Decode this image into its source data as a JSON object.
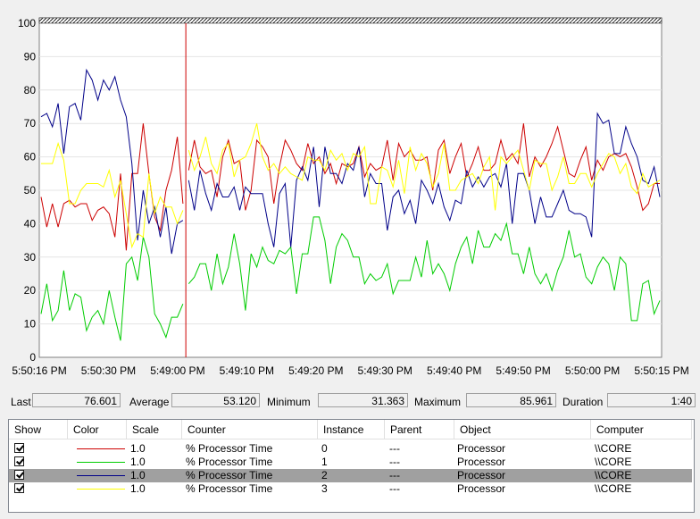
{
  "chart_data": {
    "type": "line",
    "y_ticks": [
      "0",
      "10",
      "20",
      "30",
      "40",
      "50",
      "60",
      "70",
      "80",
      "90",
      "100"
    ],
    "ylim": [
      0,
      100
    ],
    "x_ticks": [
      "5:50:16 PM",
      "5:50:30 PM",
      "5:49:00 PM",
      "5:49:10 PM",
      "5:49:20 PM",
      "5:49:30 PM",
      "5:49:40 PM",
      "5:49:50 PM",
      "5:50:00 PM",
      "5:50:15 PM"
    ],
    "current_sample_index": 26,
    "series": [
      {
        "color": "#cc0000",
        "values": [
          48,
          39,
          46,
          39,
          46,
          47,
          45,
          46,
          46,
          41,
          44,
          45,
          43,
          36,
          55,
          32,
          55,
          55,
          70,
          55,
          42,
          38,
          50,
          56,
          66,
          46,
          56,
          65,
          57,
          55,
          56,
          48,
          60,
          65,
          58,
          59,
          44,
          50,
          65,
          63,
          60,
          46,
          57,
          65,
          62,
          58,
          56,
          64,
          58,
          60,
          55,
          58,
          52,
          58,
          57,
          58,
          63,
          54,
          58,
          56,
          57,
          65,
          53,
          64,
          60,
          62,
          59,
          59,
          60,
          50,
          62,
          65,
          55,
          60,
          64,
          54,
          58,
          63,
          56,
          56,
          58,
          65,
          59,
          61,
          58,
          70,
          54,
          60,
          57,
          60,
          64,
          69,
          62,
          55,
          54,
          59,
          63,
          53,
          59,
          56,
          60,
          61,
          60,
          61,
          57,
          51,
          44,
          46,
          52,
          52
        ]
      },
      {
        "color": "#00cc00",
        "values": [
          13,
          22,
          11,
          14,
          26,
          14,
          19,
          18,
          8,
          12,
          14,
          10,
          20,
          12,
          5,
          28,
          30,
          23,
          36,
          30,
          13,
          10,
          6,
          12,
          12,
          16,
          22,
          24,
          28,
          28,
          20,
          31,
          22,
          27,
          37,
          28,
          14,
          31,
          27,
          33,
          29,
          28,
          32,
          31,
          33,
          19,
          31,
          31,
          42,
          42,
          35,
          22,
          33,
          37,
          35,
          30,
          30,
          22,
          25,
          23,
          24,
          28,
          19,
          23,
          23,
          23,
          30,
          24,
          35,
          25,
          28,
          25,
          20,
          28,
          33,
          36,
          28,
          38,
          33,
          33,
          37,
          35,
          40,
          31,
          31,
          25,
          33,
          25,
          22,
          25,
          20,
          26,
          30,
          38,
          30,
          31,
          24,
          22,
          27,
          30,
          28,
          20,
          30,
          28,
          11,
          11,
          22,
          23,
          13,
          17
        ]
      },
      {
        "color": "#000088",
        "values": [
          72,
          73,
          69,
          76,
          61,
          75,
          76,
          71,
          86,
          83,
          77,
          83,
          80,
          84,
          77,
          72,
          58,
          35,
          50,
          40,
          45,
          36,
          45,
          31,
          40,
          41,
          53,
          44,
          56,
          49,
          44,
          52,
          48,
          48,
          51,
          44,
          51,
          49,
          49,
          49,
          40,
          33,
          49,
          52,
          33,
          53,
          57,
          53,
          63,
          45,
          63,
          55,
          55,
          52,
          58,
          56,
          63,
          48,
          55,
          52,
          52,
          38,
          48,
          50,
          43,
          47,
          40,
          53,
          50,
          46,
          52,
          45,
          41,
          47,
          46,
          56,
          51,
          54,
          51,
          54,
          55,
          51,
          58,
          40,
          55,
          55,
          50,
          40,
          48,
          42,
          42,
          46,
          50,
          44,
          43,
          43,
          42,
          36,
          73,
          70,
          71,
          61,
          61,
          69,
          64,
          60,
          53,
          52,
          57,
          48
        ]
      },
      {
        "color": "#ffff00",
        "values": [
          58,
          58,
          58,
          64,
          59,
          46,
          46,
          50,
          52,
          52,
          52,
          51,
          56,
          48,
          53,
          43,
          33,
          37,
          36,
          55,
          43,
          48,
          45,
          45,
          40,
          44,
          62,
          56,
          60,
          66,
          58,
          55,
          62,
          64,
          54,
          59,
          60,
          64,
          70,
          60,
          56,
          58,
          55,
          57,
          55,
          54,
          53,
          60,
          59,
          59,
          56,
          62,
          59,
          61,
          56,
          61,
          60,
          63,
          46,
          46,
          57,
          56,
          51,
          59,
          49,
          63,
          56,
          61,
          58,
          51,
          55,
          64,
          50,
          50,
          53,
          54,
          55,
          52,
          57,
          60,
          44,
          60,
          58,
          60,
          62,
          56,
          50,
          59,
          58,
          58,
          50,
          54,
          60,
          52,
          52,
          55,
          55,
          51,
          55,
          58,
          61,
          60,
          55,
          58,
          51,
          49,
          55,
          51,
          52,
          53
        ]
      }
    ]
  },
  "stats": {
    "last_label": "Last",
    "last_value": "76.601",
    "average_label": "Average",
    "average_value": "53.120",
    "minimum_label": "Minimum",
    "minimum_value": "31.363",
    "maximum_label": "Maximum",
    "maximum_value": "85.961",
    "duration_label": "Duration",
    "duration_value": "1:40"
  },
  "legend": {
    "columns": [
      "Show",
      "Color",
      "Scale",
      "Counter",
      "Instance",
      "Parent",
      "Object",
      "Computer"
    ],
    "rows": [
      {
        "show": true,
        "color": "#cc0000",
        "scale": "1.0",
        "counter": "% Processor Time",
        "instance": "0",
        "parent": "---",
        "object": "Processor",
        "computer": "\\\\CORE",
        "selected": false
      },
      {
        "show": true,
        "color": "#00cc00",
        "scale": "1.0",
        "counter": "% Processor Time",
        "instance": "1",
        "parent": "---",
        "object": "Processor",
        "computer": "\\\\CORE",
        "selected": false
      },
      {
        "show": true,
        "color": "#000088",
        "scale": "1.0",
        "counter": "% Processor Time",
        "instance": "2",
        "parent": "---",
        "object": "Processor",
        "computer": "\\\\CORE",
        "selected": true
      },
      {
        "show": true,
        "color": "#ffff00",
        "scale": "1.0",
        "counter": "% Processor Time",
        "instance": "3",
        "parent": "---",
        "object": "Processor",
        "computer": "\\\\CORE",
        "selected": false
      }
    ]
  }
}
